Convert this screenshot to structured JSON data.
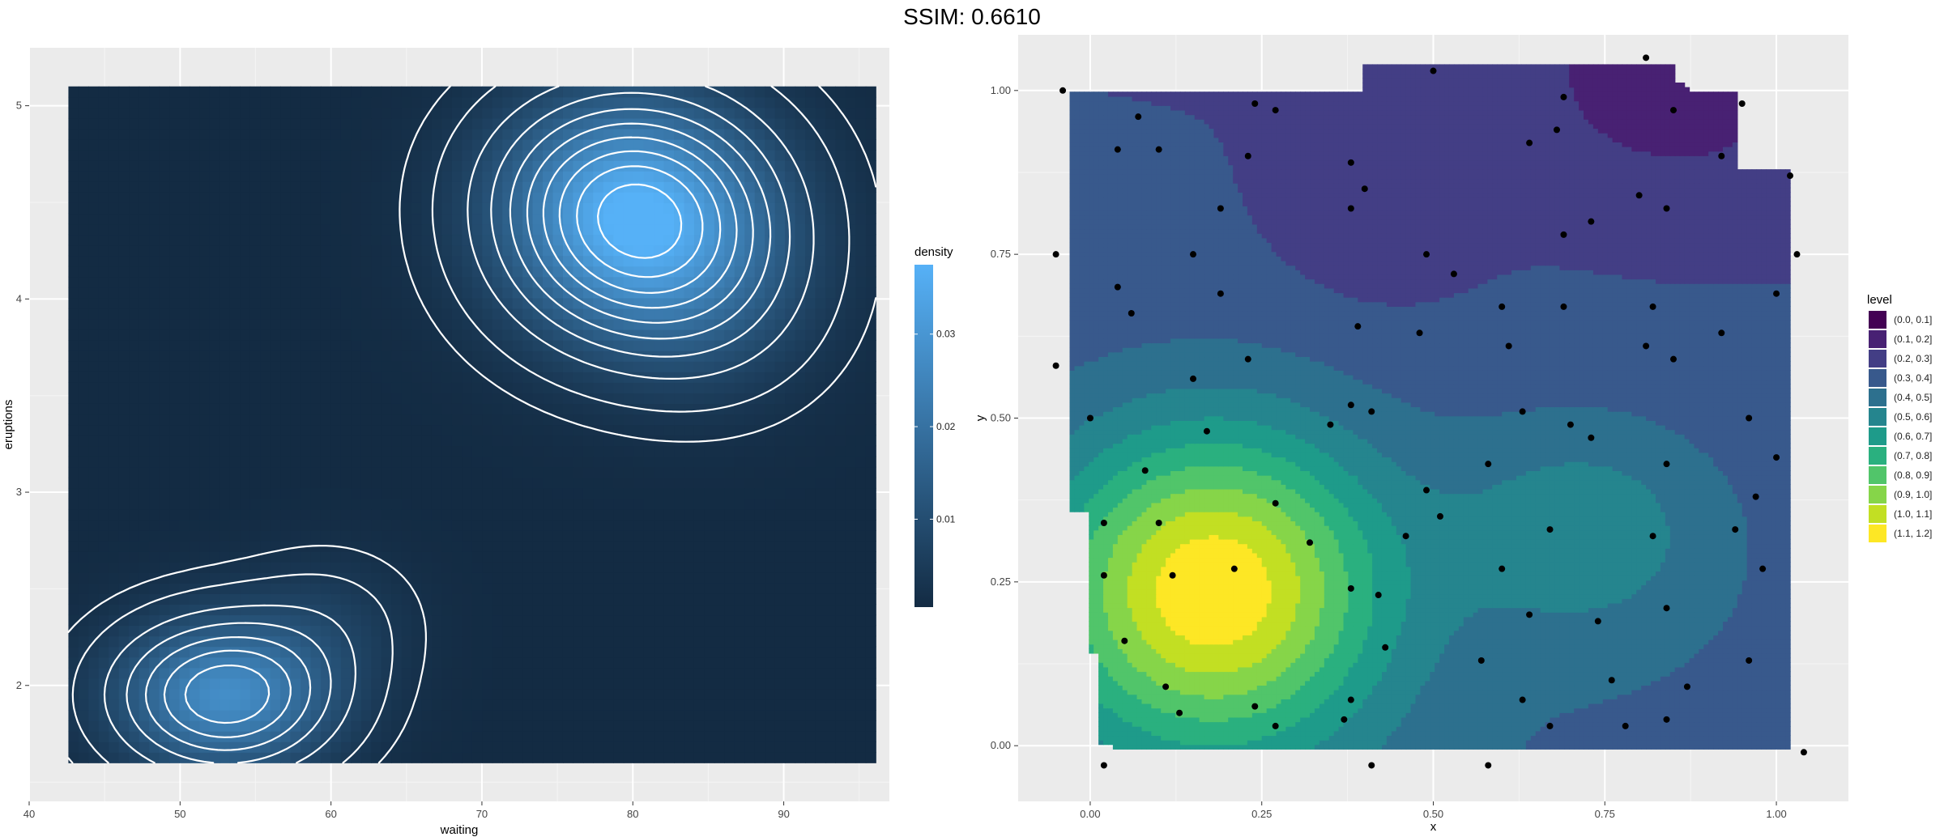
{
  "title": "SSIM: 0.6610",
  "chart_data": [
    {
      "type": "heatmap",
      "xlabel": "waiting",
      "ylabel": "eruptions",
      "xlim": [
        40,
        97
      ],
      "ylim": [
        1.4,
        5.3
      ],
      "x_ticks": [
        40,
        50,
        60,
        70,
        80,
        90
      ],
      "y_ticks": [
        2,
        3,
        4,
        5
      ],
      "x_tick_labels": [
        "40",
        "50",
        "60",
        "70",
        "80",
        "90"
      ],
      "y_tick_labels": [
        "2",
        "3",
        "4",
        "5"
      ],
      "tile_extent": {
        "x": [
          42.6,
          96.1
        ],
        "y": [
          1.6,
          5.1
        ]
      },
      "grid": true,
      "legend": {
        "title": "density",
        "position": "right",
        "range": [
          0.0005,
          0.0375
        ],
        "ticks": [
          0.01,
          0.02,
          0.03
        ],
        "tick_labels": [
          "0.01",
          "0.02",
          "0.03"
        ],
        "colors": [
          "#132b43",
          "#56b1f7"
        ]
      },
      "peaks": [
        {
          "x": 80.5,
          "y": 4.4,
          "density": 0.037
        },
        {
          "x": 53.0,
          "y": 1.95,
          "density": 0.027
        }
      ],
      "contour_color": "#ffffff"
    },
    {
      "type": "scatter",
      "subtype": "filled-contour",
      "xlabel": "x",
      "ylabel": "y",
      "xlim": [
        -0.105,
        1.105
      ],
      "ylim": [
        -0.085,
        1.085
      ],
      "x_ticks": [
        0.0,
        0.25,
        0.5,
        0.75,
        1.0
      ],
      "y_ticks": [
        0.0,
        0.25,
        0.5,
        0.75,
        1.0
      ],
      "x_tick_labels": [
        "0.00",
        "0.25",
        "0.50",
        "0.75",
        "1.00"
      ],
      "y_tick_labels": [
        "0.00",
        "0.25",
        "0.50",
        "0.75",
        "1.00"
      ],
      "grid": true,
      "legend": {
        "title": "level",
        "position": "right",
        "entries": [
          "(0.0, 0.1]",
          "(0.1, 0.2]",
          "(0.2, 0.3]",
          "(0.3, 0.4]",
          "(0.4, 0.5]",
          "(0.5, 0.6]",
          "(0.6, 0.7]",
          "(0.7, 0.8]",
          "(0.8, 0.9]",
          "(0.9, 1.0]",
          "(1.0, 1.1]",
          "(1.1, 1.2]"
        ],
        "colors": [
          "#440154",
          "#482173",
          "#433e85",
          "#38598c",
          "#2d708e",
          "#25858e",
          "#1e9b8a",
          "#2ab07f",
          "#51c56a",
          "#86d549",
          "#c2df23",
          "#fde725"
        ]
      },
      "surface": {
        "bumps": [
          {
            "x": 0.18,
            "y": 0.24,
            "h": 0.82,
            "sx": 0.17,
            "sy": 0.17
          },
          {
            "x": 0.72,
            "y": 0.33,
            "h": 0.22,
            "sx": 0.14,
            "sy": 0.12
          },
          {
            "x": 0.42,
            "y": 0.82,
            "h": -0.1,
            "sx": 0.1,
            "sy": 0.1
          },
          {
            "x": 0.85,
            "y": 1.0,
            "h": -0.12,
            "sx": 0.18,
            "sy": 0.14
          }
        ],
        "base": 0.34,
        "tilt_y": -0.1,
        "tilt_x": -0.02
      },
      "points": [
        [
          -0.04,
          1.0
        ],
        [
          0.07,
          0.96
        ],
        [
          0.04,
          0.91
        ],
        [
          0.1,
          0.91
        ],
        [
          0.24,
          0.98
        ],
        [
          0.27,
          0.97
        ],
        [
          0.23,
          0.9
        ],
        [
          0.5,
          1.03
        ],
        [
          0.64,
          0.92
        ],
        [
          0.68,
          0.94
        ],
        [
          0.69,
          0.99
        ],
        [
          0.81,
          1.05
        ],
        [
          0.85,
          0.97
        ],
        [
          0.95,
          0.98
        ],
        [
          0.92,
          0.9
        ],
        [
          1.02,
          0.87
        ],
        [
          0.38,
          0.89
        ],
        [
          0.4,
          0.85
        ],
        [
          0.38,
          0.82
        ],
        [
          0.19,
          0.82
        ],
        [
          -0.05,
          0.75
        ],
        [
          0.15,
          0.75
        ],
        [
          0.49,
          0.75
        ],
        [
          0.53,
          0.72
        ],
        [
          0.69,
          0.78
        ],
        [
          0.73,
          0.8
        ],
        [
          0.8,
          0.84
        ],
        [
          0.84,
          0.82
        ],
        [
          1.03,
          0.75
        ],
        [
          0.04,
          0.7
        ],
        [
          0.06,
          0.66
        ],
        [
          0.19,
          0.69
        ],
        [
          0.39,
          0.64
        ],
        [
          0.48,
          0.63
        ],
        [
          0.6,
          0.67
        ],
        [
          0.69,
          0.67
        ],
        [
          0.82,
          0.67
        ],
        [
          0.92,
          0.63
        ],
        [
          1.0,
          0.69
        ],
        [
          0.81,
          0.61
        ],
        [
          0.85,
          0.59
        ],
        [
          0.61,
          0.61
        ],
        [
          0.23,
          0.59
        ],
        [
          0.15,
          0.56
        ],
        [
          -0.05,
          0.58
        ],
        [
          0.0,
          0.5
        ],
        [
          0.17,
          0.48
        ],
        [
          0.38,
          0.52
        ],
        [
          0.35,
          0.49
        ],
        [
          0.41,
          0.51
        ],
        [
          0.63,
          0.51
        ],
        [
          0.7,
          0.49
        ],
        [
          0.73,
          0.47
        ],
        [
          0.96,
          0.5
        ],
        [
          1.0,
          0.44
        ],
        [
          0.58,
          0.43
        ],
        [
          0.84,
          0.43
        ],
        [
          0.08,
          0.42
        ],
        [
          0.02,
          0.34
        ],
        [
          0.1,
          0.34
        ],
        [
          0.27,
          0.37
        ],
        [
          0.32,
          0.31
        ],
        [
          0.49,
          0.39
        ],
        [
          0.51,
          0.35
        ],
        [
          0.46,
          0.32
        ],
        [
          0.67,
          0.33
        ],
        [
          0.82,
          0.32
        ],
        [
          0.94,
          0.33
        ],
        [
          0.97,
          0.38
        ],
        [
          0.12,
          0.26
        ],
        [
          0.21,
          0.27
        ],
        [
          0.02,
          0.26
        ],
        [
          0.38,
          0.24
        ],
        [
          0.42,
          0.23
        ],
        [
          0.6,
          0.27
        ],
        [
          0.64,
          0.2
        ],
        [
          0.74,
          0.19
        ],
        [
          0.84,
          0.21
        ],
        [
          0.98,
          0.27
        ],
        [
          0.05,
          0.16
        ],
        [
          0.43,
          0.15
        ],
        [
          0.57,
          0.13
        ],
        [
          0.96,
          0.13
        ],
        [
          0.11,
          0.09
        ],
        [
          0.13,
          0.05
        ],
        [
          0.24,
          0.06
        ],
        [
          0.38,
          0.07
        ],
        [
          0.37,
          0.04
        ],
        [
          0.27,
          0.03
        ],
        [
          0.63,
          0.07
        ],
        [
          0.67,
          0.03
        ],
        [
          0.76,
          0.1
        ],
        [
          0.78,
          0.03
        ],
        [
          0.84,
          0.04
        ],
        [
          0.87,
          0.09
        ],
        [
          0.02,
          -0.03
        ],
        [
          0.41,
          -0.03
        ],
        [
          0.58,
          -0.03
        ],
        [
          1.04,
          -0.01
        ]
      ],
      "point_color": "#000000"
    }
  ]
}
